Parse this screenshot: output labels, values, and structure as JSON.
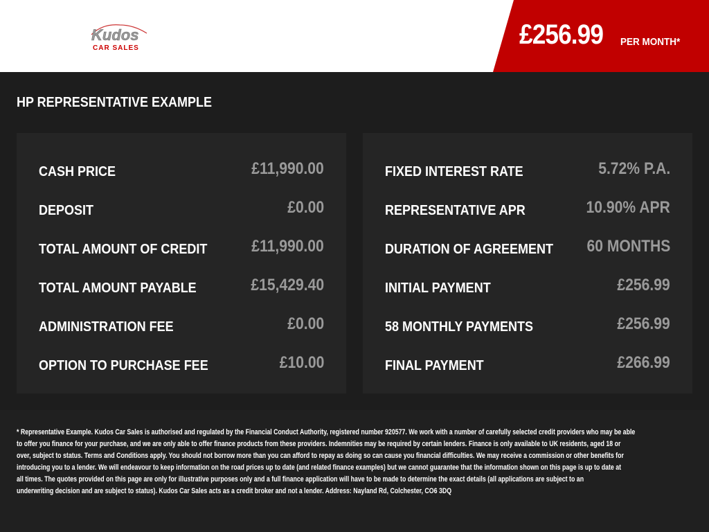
{
  "header": {
    "logo_text": "Kudos",
    "logo_sub": "CAR SALES",
    "price": "£256.99",
    "per_month": "PER MONTH*"
  },
  "colors": {
    "accent": "#c10000",
    "background": "#1d1d1d",
    "panel": "#252525",
    "value": "#9a9a9a"
  },
  "section_title": "HP REPRESENTATIVE EXAMPLE",
  "left": [
    {
      "label": "CASH PRICE",
      "value": "£11,990.00"
    },
    {
      "label": "DEPOSIT",
      "value": "£0.00"
    },
    {
      "label": "TOTAL AMOUNT OF CREDIT",
      "value": "£11,990.00"
    },
    {
      "label": "TOTAL AMOUNT PAYABLE",
      "value": "£15,429.40"
    },
    {
      "label": "ADMINISTRATION FEE",
      "value": "£0.00"
    },
    {
      "label": "OPTION TO PURCHASE FEE",
      "value": "£10.00"
    }
  ],
  "right": [
    {
      "label": "FIXED INTEREST RATE",
      "value": "5.72% P.A."
    },
    {
      "label": "REPRESENTATIVE APR",
      "value": "10.90% APR"
    },
    {
      "label": "DURATION OF AGREEMENT",
      "value": "60 MONTHS"
    },
    {
      "label": "INITIAL PAYMENT",
      "value": "£256.99"
    },
    {
      "label": "58 MONTHLY PAYMENTS",
      "value": "£256.99"
    },
    {
      "label": "FINAL PAYMENT",
      "value": "£266.99"
    }
  ],
  "disclaimer": [
    "* Representative Example. Kudos Car Sales is authorised and regulated by the Financial Conduct Authority, registered number 920577. We work with a number of carefully selected credit providers who may be able",
    "to offer you finance for your purchase, and we are only able to offer finance products from these providers. Indemnities may be required by certain lenders. Finance is only available to UK residents, aged 18 or",
    "over, subject to status. Terms and Conditions apply. You should not borrow more than you can afford to repay as doing so can cause you financial difficulties. We may receive a commission or other benefits for",
    "introducing you to a lender. We will endeavour to keep information on the road prices up to date (and related finance examples) but we cannot guarantee that the information shown on this page is up to date at",
    "all times. The quotes provided on this page are only for illustrative purposes only and a full finance application will have to be made to determine the exact details (all applications are subject to an",
    "underwriting decision and are subject to status). Kudos Car Sales acts as a credit broker and not a lender. Address: Nayland Rd, Colchester, CO6 3DQ"
  ]
}
